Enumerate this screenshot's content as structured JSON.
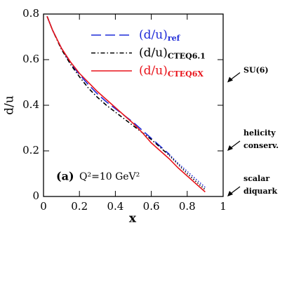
{
  "chart_data": {
    "type": "line",
    "x_label": "x",
    "y_label": "d/u",
    "x": [
      0.02,
      0.05,
      0.1,
      0.15,
      0.2,
      0.25,
      0.3,
      0.35,
      0.4,
      0.45,
      0.5,
      0.55,
      0.6,
      0.65,
      0.7,
      0.75,
      0.8,
      0.85,
      0.9
    ],
    "series": [
      {
        "name": "(d/u)ref",
        "color": "#1f2bd8",
        "style": "dashed",
        "extrapolated_from": 0.7,
        "values": [
          0.79,
          0.73,
          0.65,
          0.585,
          0.535,
          0.49,
          0.45,
          0.415,
          0.385,
          0.355,
          0.325,
          0.29,
          0.255,
          0.22,
          0.185,
          0.145,
          0.11,
          0.075,
          0.04
        ]
      },
      {
        "name": "(d/u)CTEQ6.1",
        "color": "#000000",
        "style": "dashdot",
        "extrapolated_from": 0.7,
        "values": [
          0.79,
          0.73,
          0.645,
          0.58,
          0.525,
          0.475,
          0.435,
          0.4,
          0.37,
          0.34,
          0.31,
          0.28,
          0.25,
          0.215,
          0.18,
          0.14,
          0.1,
          0.065,
          0.03
        ]
      },
      {
        "name": "(d/u)CTEQ6X",
        "color": "#e8141b",
        "style": "solid",
        "values": [
          0.79,
          0.73,
          0.65,
          0.59,
          0.54,
          0.5,
          0.46,
          0.425,
          0.39,
          0.355,
          0.32,
          0.28,
          0.235,
          0.2,
          0.165,
          0.125,
          0.09,
          0.055,
          0.02
        ]
      }
    ],
    "xlim": [
      0,
      1
    ],
    "xticks": [
      0,
      0.2,
      0.4,
      0.6,
      0.8,
      1
    ],
    "ylim": [
      0,
      0.8
    ],
    "yticks": [
      0,
      0.2,
      0.4,
      0.6,
      0.8
    ],
    "panel_label": "(a)",
    "panel_note": "Q²=10 GeV²",
    "annotations": [
      {
        "text": [
          "SU(6)"
        ],
        "value": 0.5
      },
      {
        "text": [
          "helicity",
          "conserv."
        ],
        "value": 0.2
      },
      {
        "text": [
          "scalar",
          "diquark"
        ],
        "value": 0
      }
    ]
  }
}
